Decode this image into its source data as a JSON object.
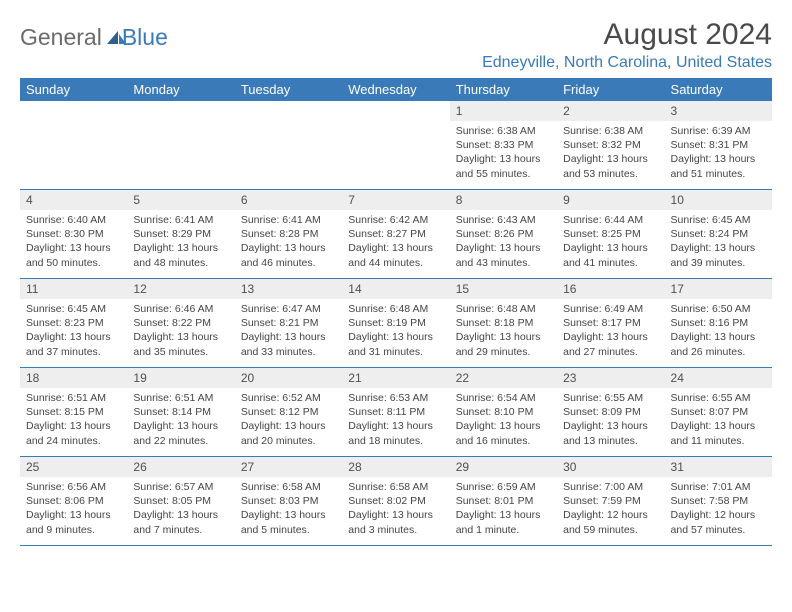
{
  "logo": {
    "general": "General",
    "blue": "Blue"
  },
  "title": "August 2024",
  "location": "Edneyville, North Carolina, United States",
  "colors": {
    "accent": "#3a7ab8",
    "header_bg": "#3a7ab8",
    "day_num_bg": "#eeeeee",
    "text_dark": "#454545",
    "text_gray": "#6b6b6b"
  },
  "day_labels": [
    "Sunday",
    "Monday",
    "Tuesday",
    "Wednesday",
    "Thursday",
    "Friday",
    "Saturday"
  ],
  "weeks": [
    [
      null,
      null,
      null,
      null,
      {
        "num": "1",
        "sunrise": "Sunrise: 6:38 AM",
        "sunset": "Sunset: 8:33 PM",
        "daylight": "Daylight: 13 hours and 55 minutes."
      },
      {
        "num": "2",
        "sunrise": "Sunrise: 6:38 AM",
        "sunset": "Sunset: 8:32 PM",
        "daylight": "Daylight: 13 hours and 53 minutes."
      },
      {
        "num": "3",
        "sunrise": "Sunrise: 6:39 AM",
        "sunset": "Sunset: 8:31 PM",
        "daylight": "Daylight: 13 hours and 51 minutes."
      }
    ],
    [
      {
        "num": "4",
        "sunrise": "Sunrise: 6:40 AM",
        "sunset": "Sunset: 8:30 PM",
        "daylight": "Daylight: 13 hours and 50 minutes."
      },
      {
        "num": "5",
        "sunrise": "Sunrise: 6:41 AM",
        "sunset": "Sunset: 8:29 PM",
        "daylight": "Daylight: 13 hours and 48 minutes."
      },
      {
        "num": "6",
        "sunrise": "Sunrise: 6:41 AM",
        "sunset": "Sunset: 8:28 PM",
        "daylight": "Daylight: 13 hours and 46 minutes."
      },
      {
        "num": "7",
        "sunrise": "Sunrise: 6:42 AM",
        "sunset": "Sunset: 8:27 PM",
        "daylight": "Daylight: 13 hours and 44 minutes."
      },
      {
        "num": "8",
        "sunrise": "Sunrise: 6:43 AM",
        "sunset": "Sunset: 8:26 PM",
        "daylight": "Daylight: 13 hours and 43 minutes."
      },
      {
        "num": "9",
        "sunrise": "Sunrise: 6:44 AM",
        "sunset": "Sunset: 8:25 PM",
        "daylight": "Daylight: 13 hours and 41 minutes."
      },
      {
        "num": "10",
        "sunrise": "Sunrise: 6:45 AM",
        "sunset": "Sunset: 8:24 PM",
        "daylight": "Daylight: 13 hours and 39 minutes."
      }
    ],
    [
      {
        "num": "11",
        "sunrise": "Sunrise: 6:45 AM",
        "sunset": "Sunset: 8:23 PM",
        "daylight": "Daylight: 13 hours and 37 minutes."
      },
      {
        "num": "12",
        "sunrise": "Sunrise: 6:46 AM",
        "sunset": "Sunset: 8:22 PM",
        "daylight": "Daylight: 13 hours and 35 minutes."
      },
      {
        "num": "13",
        "sunrise": "Sunrise: 6:47 AM",
        "sunset": "Sunset: 8:21 PM",
        "daylight": "Daylight: 13 hours and 33 minutes."
      },
      {
        "num": "14",
        "sunrise": "Sunrise: 6:48 AM",
        "sunset": "Sunset: 8:19 PM",
        "daylight": "Daylight: 13 hours and 31 minutes."
      },
      {
        "num": "15",
        "sunrise": "Sunrise: 6:48 AM",
        "sunset": "Sunset: 8:18 PM",
        "daylight": "Daylight: 13 hours and 29 minutes."
      },
      {
        "num": "16",
        "sunrise": "Sunrise: 6:49 AM",
        "sunset": "Sunset: 8:17 PM",
        "daylight": "Daylight: 13 hours and 27 minutes."
      },
      {
        "num": "17",
        "sunrise": "Sunrise: 6:50 AM",
        "sunset": "Sunset: 8:16 PM",
        "daylight": "Daylight: 13 hours and 26 minutes."
      }
    ],
    [
      {
        "num": "18",
        "sunrise": "Sunrise: 6:51 AM",
        "sunset": "Sunset: 8:15 PM",
        "daylight": "Daylight: 13 hours and 24 minutes."
      },
      {
        "num": "19",
        "sunrise": "Sunrise: 6:51 AM",
        "sunset": "Sunset: 8:14 PM",
        "daylight": "Daylight: 13 hours and 22 minutes."
      },
      {
        "num": "20",
        "sunrise": "Sunrise: 6:52 AM",
        "sunset": "Sunset: 8:12 PM",
        "daylight": "Daylight: 13 hours and 20 minutes."
      },
      {
        "num": "21",
        "sunrise": "Sunrise: 6:53 AM",
        "sunset": "Sunset: 8:11 PM",
        "daylight": "Daylight: 13 hours and 18 minutes."
      },
      {
        "num": "22",
        "sunrise": "Sunrise: 6:54 AM",
        "sunset": "Sunset: 8:10 PM",
        "daylight": "Daylight: 13 hours and 16 minutes."
      },
      {
        "num": "23",
        "sunrise": "Sunrise: 6:55 AM",
        "sunset": "Sunset: 8:09 PM",
        "daylight": "Daylight: 13 hours and 13 minutes."
      },
      {
        "num": "24",
        "sunrise": "Sunrise: 6:55 AM",
        "sunset": "Sunset: 8:07 PM",
        "daylight": "Daylight: 13 hours and 11 minutes."
      }
    ],
    [
      {
        "num": "25",
        "sunrise": "Sunrise: 6:56 AM",
        "sunset": "Sunset: 8:06 PM",
        "daylight": "Daylight: 13 hours and 9 minutes."
      },
      {
        "num": "26",
        "sunrise": "Sunrise: 6:57 AM",
        "sunset": "Sunset: 8:05 PM",
        "daylight": "Daylight: 13 hours and 7 minutes."
      },
      {
        "num": "27",
        "sunrise": "Sunrise: 6:58 AM",
        "sunset": "Sunset: 8:03 PM",
        "daylight": "Daylight: 13 hours and 5 minutes."
      },
      {
        "num": "28",
        "sunrise": "Sunrise: 6:58 AM",
        "sunset": "Sunset: 8:02 PM",
        "daylight": "Daylight: 13 hours and 3 minutes."
      },
      {
        "num": "29",
        "sunrise": "Sunrise: 6:59 AM",
        "sunset": "Sunset: 8:01 PM",
        "daylight": "Daylight: 13 hours and 1 minute."
      },
      {
        "num": "30",
        "sunrise": "Sunrise: 7:00 AM",
        "sunset": "Sunset: 7:59 PM",
        "daylight": "Daylight: 12 hours and 59 minutes."
      },
      {
        "num": "31",
        "sunrise": "Sunrise: 7:01 AM",
        "sunset": "Sunset: 7:58 PM",
        "daylight": "Daylight: 12 hours and 57 minutes."
      }
    ]
  ]
}
